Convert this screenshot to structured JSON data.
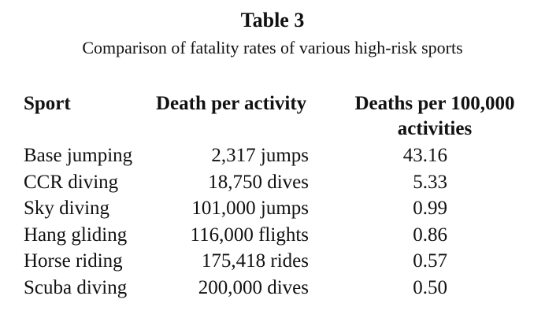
{
  "table": {
    "title": "Table 3",
    "caption": "Comparison of fatality rates of various high-risk sports",
    "headers": {
      "sport": "Sport",
      "activity": "Death per activity",
      "rate_line1": "Deaths per 100,000",
      "rate_line2": "activities"
    },
    "rows": [
      {
        "sport": "Base jumping",
        "activity": "2,317 jumps",
        "rate": "43.16"
      },
      {
        "sport": "CCR diving",
        "activity": "18,750 dives",
        "rate": "5.33"
      },
      {
        "sport": "Sky diving",
        "activity": "101,000 jumps",
        "rate": "0.99"
      },
      {
        "sport": "Hang gliding",
        "activity": "116,000 flights",
        "rate": "0.86"
      },
      {
        "sport": "Horse riding",
        "activity": "175,418 rides",
        "rate": "0.57"
      },
      {
        "sport": "Scuba diving",
        "activity": "200,000 dives",
        "rate": "0.50"
      }
    ]
  }
}
